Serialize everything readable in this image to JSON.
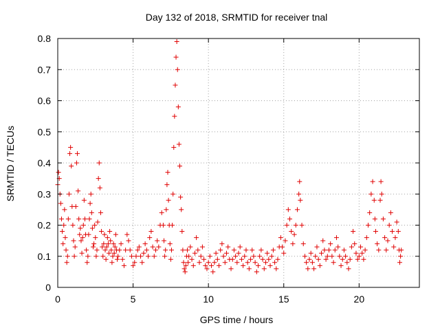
{
  "chart_data": {
    "type": "scatter",
    "title": "Day 132 of 2018, SRMTID for receiver tnal",
    "xlabel": "GPS time / hours",
    "ylabel": "SRMTID / TECUs",
    "xlim": [
      0,
      24
    ],
    "ylim": [
      0,
      0.8
    ],
    "x_ticks": [
      0,
      5,
      10,
      15,
      20
    ],
    "y_ticks": [
      0,
      0.1,
      0.2,
      0.3,
      0.4,
      0.5,
      0.6,
      0.7,
      0.8
    ],
    "x_tick_labels": [
      "0",
      "5",
      "10",
      "15",
      "20"
    ],
    "y_tick_labels": [
      "0",
      "0.1",
      "0.2",
      "0.3",
      "0.4",
      "0.5",
      "0.6",
      "0.7",
      "0.8"
    ],
    "grid": true,
    "marker": "plus",
    "marker_color": "#e00000",
    "series": [
      {
        "name": "SRMTID",
        "points": [
          [
            0.0,
            0.33
          ],
          [
            0.05,
            0.37
          ],
          [
            0.1,
            0.35
          ],
          [
            0.15,
            0.3
          ],
          [
            0.2,
            0.27
          ],
          [
            0.25,
            0.22
          ],
          [
            0.3,
            0.18
          ],
          [
            0.35,
            0.14
          ],
          [
            0.4,
            0.2
          ],
          [
            0.45,
            0.25
          ],
          [
            0.5,
            0.16
          ],
          [
            0.55,
            0.12
          ],
          [
            0.6,
            0.08
          ],
          [
            0.65,
            0.1
          ],
          [
            0.7,
            0.22
          ],
          [
            0.75,
            0.3
          ],
          [
            0.8,
            0.43
          ],
          [
            0.85,
            0.45
          ],
          [
            0.9,
            0.39
          ],
          [
            0.95,
            0.26
          ],
          [
            1.0,
            0.2
          ],
          [
            1.05,
            0.15
          ],
          [
            1.1,
            0.1
          ],
          [
            1.15,
            0.13
          ],
          [
            1.2,
            0.26
          ],
          [
            1.25,
            0.4
          ],
          [
            1.3,
            0.43
          ],
          [
            1.35,
            0.31
          ],
          [
            1.4,
            0.22
          ],
          [
            1.45,
            0.17
          ],
          [
            1.5,
            0.19
          ],
          [
            1.55,
            0.15
          ],
          [
            1.6,
            0.11
          ],
          [
            1.65,
            0.16
          ],
          [
            1.7,
            0.2
          ],
          [
            1.75,
            0.28
          ],
          [
            1.8,
            0.22
          ],
          [
            1.85,
            0.17
          ],
          [
            1.9,
            0.12
          ],
          [
            1.95,
            0.08
          ],
          [
            2.0,
            0.1
          ],
          [
            2.05,
            0.17
          ],
          [
            2.1,
            0.22
          ],
          [
            2.15,
            0.27
          ],
          [
            2.2,
            0.3
          ],
          [
            2.25,
            0.24
          ],
          [
            2.3,
            0.19
          ],
          [
            2.35,
            0.13
          ],
          [
            2.4,
            0.14
          ],
          [
            2.45,
            0.2
          ],
          [
            2.5,
            0.16
          ],
          [
            2.55,
            0.1
          ],
          [
            2.6,
            0.12
          ],
          [
            2.65,
            0.21
          ],
          [
            2.7,
            0.35
          ],
          [
            2.75,
            0.4
          ],
          [
            2.8,
            0.32
          ],
          [
            2.85,
            0.24
          ],
          [
            2.9,
            0.18
          ],
          [
            2.95,
            0.13
          ],
          [
            3.0,
            0.1
          ],
          [
            3.05,
            0.14
          ],
          [
            3.1,
            0.17
          ],
          [
            3.15,
            0.12
          ],
          [
            3.2,
            0.09
          ],
          [
            3.25,
            0.13
          ],
          [
            3.3,
            0.16
          ],
          [
            3.35,
            0.14
          ],
          [
            3.4,
            0.11
          ],
          [
            3.45,
            0.18
          ],
          [
            3.5,
            0.15
          ],
          [
            3.55,
            0.12
          ],
          [
            3.6,
            0.08
          ],
          [
            3.65,
            0.1
          ],
          [
            3.7,
            0.14
          ],
          [
            3.75,
            0.11
          ],
          [
            3.8,
            0.13
          ],
          [
            3.85,
            0.17
          ],
          [
            3.9,
            0.12
          ],
          [
            3.95,
            0.09
          ],
          [
            4.0,
            0.1
          ],
          [
            4.1,
            0.12
          ],
          [
            4.2,
            0.14
          ],
          [
            4.3,
            0.09
          ],
          [
            4.4,
            0.07
          ],
          [
            4.5,
            0.12
          ],
          [
            4.6,
            0.17
          ],
          [
            4.7,
            0.15
          ],
          [
            4.8,
            0.12
          ],
          [
            4.9,
            0.1
          ],
          [
            5.0,
            0.07
          ],
          [
            5.1,
            0.08
          ],
          [
            5.2,
            0.1
          ],
          [
            5.3,
            0.12
          ],
          [
            5.4,
            0.13
          ],
          [
            5.5,
            0.1
          ],
          [
            5.6,
            0.08
          ],
          [
            5.7,
            0.11
          ],
          [
            5.8,
            0.14
          ],
          [
            5.9,
            0.12
          ],
          [
            6.0,
            0.1
          ],
          [
            6.1,
            0.16
          ],
          [
            6.2,
            0.18
          ],
          [
            6.3,
            0.13
          ],
          [
            6.4,
            0.1
          ],
          [
            6.5,
            0.12
          ],
          [
            6.6,
            0.15
          ],
          [
            6.7,
            0.13
          ],
          [
            6.8,
            0.2
          ],
          [
            6.9,
            0.24
          ],
          [
            7.0,
            0.2
          ],
          [
            7.05,
            0.15
          ],
          [
            7.1,
            0.1
          ],
          [
            7.15,
            0.12
          ],
          [
            7.2,
            0.25
          ],
          [
            7.25,
            0.33
          ],
          [
            7.3,
            0.37
          ],
          [
            7.35,
            0.28
          ],
          [
            7.4,
            0.2
          ],
          [
            7.45,
            0.14
          ],
          [
            7.5,
            0.09
          ],
          [
            7.55,
            0.12
          ],
          [
            7.6,
            0.2
          ],
          [
            7.65,
            0.3
          ],
          [
            7.7,
            0.45
          ],
          [
            7.75,
            0.55
          ],
          [
            7.8,
            0.65
          ],
          [
            7.85,
            0.74
          ],
          [
            7.9,
            0.79
          ],
          [
            7.95,
            0.7
          ],
          [
            8.0,
            0.58
          ],
          [
            8.05,
            0.46
          ],
          [
            8.1,
            0.39
          ],
          [
            8.15,
            0.29
          ],
          [
            8.2,
            0.25
          ],
          [
            8.25,
            0.18
          ],
          [
            8.3,
            0.12
          ],
          [
            8.35,
            0.08
          ],
          [
            8.4,
            0.06
          ],
          [
            8.45,
            0.05
          ],
          [
            8.5,
            0.07
          ],
          [
            8.55,
            0.1
          ],
          [
            8.6,
            0.12
          ],
          [
            8.65,
            0.08
          ],
          [
            8.7,
            0.1
          ],
          [
            8.8,
            0.13
          ],
          [
            8.9,
            0.09
          ],
          [
            9.0,
            0.07
          ],
          [
            9.1,
            0.11
          ],
          [
            9.2,
            0.16
          ],
          [
            9.3,
            0.12
          ],
          [
            9.4,
            0.08
          ],
          [
            9.5,
            0.1
          ],
          [
            9.6,
            0.13
          ],
          [
            9.7,
            0.09
          ],
          [
            9.8,
            0.07
          ],
          [
            9.9,
            0.06
          ],
          [
            10.0,
            0.08
          ],
          [
            10.1,
            0.1
          ],
          [
            10.2,
            0.07
          ],
          [
            10.3,
            0.05
          ],
          [
            10.4,
            0.08
          ],
          [
            10.5,
            0.11
          ],
          [
            10.6,
            0.09
          ],
          [
            10.7,
            0.07
          ],
          [
            10.8,
            0.12
          ],
          [
            10.9,
            0.14
          ],
          [
            11.0,
            0.1
          ],
          [
            11.1,
            0.08
          ],
          [
            11.2,
            0.11
          ],
          [
            11.3,
            0.13
          ],
          [
            11.4,
            0.09
          ],
          [
            11.5,
            0.06
          ],
          [
            11.6,
            0.09
          ],
          [
            11.7,
            0.12
          ],
          [
            11.8,
            0.1
          ],
          [
            11.9,
            0.08
          ],
          [
            12.0,
            0.11
          ],
          [
            12.1,
            0.13
          ],
          [
            12.2,
            0.09
          ],
          [
            12.3,
            0.07
          ],
          [
            12.4,
            0.1
          ],
          [
            12.5,
            0.12
          ],
          [
            12.6,
            0.08
          ],
          [
            12.7,
            0.06
          ],
          [
            12.8,
            0.09
          ],
          [
            12.9,
            0.12
          ],
          [
            13.0,
            0.1
          ],
          [
            13.1,
            0.08
          ],
          [
            13.2,
            0.05
          ],
          [
            13.3,
            0.07
          ],
          [
            13.4,
            0.1
          ],
          [
            13.5,
            0.12
          ],
          [
            13.6,
            0.09
          ],
          [
            13.7,
            0.06
          ],
          [
            13.8,
            0.08
          ],
          [
            13.9,
            0.11
          ],
          [
            14.0,
            0.09
          ],
          [
            14.1,
            0.07
          ],
          [
            14.2,
            0.1
          ],
          [
            14.3,
            0.12
          ],
          [
            14.4,
            0.08
          ],
          [
            14.5,
            0.06
          ],
          [
            14.6,
            0.09
          ],
          [
            14.7,
            0.13
          ],
          [
            14.8,
            0.16
          ],
          [
            14.9,
            0.13
          ],
          [
            15.0,
            0.11
          ],
          [
            15.1,
            0.15
          ],
          [
            15.2,
            0.2
          ],
          [
            15.3,
            0.25
          ],
          [
            15.4,
            0.22
          ],
          [
            15.5,
            0.18
          ],
          [
            15.6,
            0.14
          ],
          [
            15.7,
            0.17
          ],
          [
            15.8,
            0.2
          ],
          [
            15.9,
            0.25
          ],
          [
            16.0,
            0.3
          ],
          [
            16.05,
            0.34
          ],
          [
            16.1,
            0.28
          ],
          [
            16.2,
            0.2
          ],
          [
            16.3,
            0.14
          ],
          [
            16.4,
            0.1
          ],
          [
            16.5,
            0.08
          ],
          [
            16.6,
            0.06
          ],
          [
            16.7,
            0.09
          ],
          [
            16.8,
            0.11
          ],
          [
            16.9,
            0.08
          ],
          [
            17.0,
            0.06
          ],
          [
            17.1,
            0.1
          ],
          [
            17.2,
            0.13
          ],
          [
            17.3,
            0.09
          ],
          [
            17.4,
            0.07
          ],
          [
            17.5,
            0.11
          ],
          [
            17.6,
            0.15
          ],
          [
            17.7,
            0.12
          ],
          [
            17.8,
            0.09
          ],
          [
            17.9,
            0.1
          ],
          [
            18.0,
            0.12
          ],
          [
            18.1,
            0.14
          ],
          [
            18.2,
            0.1
          ],
          [
            18.3,
            0.08
          ],
          [
            18.4,
            0.12
          ],
          [
            18.5,
            0.16
          ],
          [
            18.6,
            0.13
          ],
          [
            18.7,
            0.1
          ],
          [
            18.8,
            0.07
          ],
          [
            18.9,
            0.09
          ],
          [
            19.0,
            0.12
          ],
          [
            19.1,
            0.1
          ],
          [
            19.2,
            0.08
          ],
          [
            19.3,
            0.06
          ],
          [
            19.4,
            0.09
          ],
          [
            19.5,
            0.13
          ],
          [
            19.6,
            0.18
          ],
          [
            19.7,
            0.14
          ],
          [
            19.8,
            0.11
          ],
          [
            19.9,
            0.09
          ],
          [
            20.0,
            0.1
          ],
          [
            20.1,
            0.13
          ],
          [
            20.2,
            0.11
          ],
          [
            20.3,
            0.09
          ],
          [
            20.4,
            0.12
          ],
          [
            20.5,
            0.16
          ],
          [
            20.6,
            0.2
          ],
          [
            20.7,
            0.24
          ],
          [
            20.8,
            0.3
          ],
          [
            20.9,
            0.34
          ],
          [
            21.0,
            0.28
          ],
          [
            21.05,
            0.22
          ],
          [
            21.1,
            0.18
          ],
          [
            21.2,
            0.14
          ],
          [
            21.3,
            0.12
          ],
          [
            21.4,
            0.28
          ],
          [
            21.45,
            0.34
          ],
          [
            21.5,
            0.3
          ],
          [
            21.6,
            0.22
          ],
          [
            21.7,
            0.16
          ],
          [
            21.8,
            0.12
          ],
          [
            21.9,
            0.15
          ],
          [
            22.0,
            0.2
          ],
          [
            22.1,
            0.24
          ],
          [
            22.2,
            0.18
          ],
          [
            22.3,
            0.13
          ],
          [
            22.4,
            0.16
          ],
          [
            22.5,
            0.21
          ],
          [
            22.6,
            0.18
          ],
          [
            22.65,
            0.12
          ],
          [
            22.7,
            0.08
          ],
          [
            22.75,
            0.1
          ],
          [
            22.8,
            0.12
          ]
        ]
      }
    ]
  }
}
